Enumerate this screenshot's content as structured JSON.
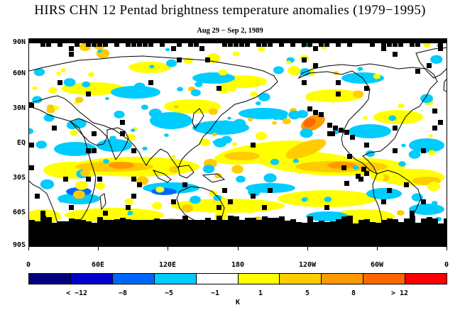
{
  "title": "HIRS CHN 12 Pentad brightness temperature anomalies (1979−1995)",
  "subtitle": "Aug 29 − Sep 2, 1989",
  "latitude_labels": [
    "90N",
    "60N",
    "30N",
    "EQ",
    "30S",
    "60S",
    "90S"
  ],
  "longitude_labels": [
    "0",
    "60E",
    "120E",
    "180",
    "120W",
    "60W",
    "0"
  ],
  "colorbar": {
    "colors": [
      "#00007f",
      "#0000cc",
      "#0066ff",
      "#00ccff",
      "#ffffff",
      "#ffff00",
      "#ffcc00",
      "#ff9900",
      "#ff6600",
      "#ff0000"
    ],
    "labels": [
      "< −12",
      "−8",
      "−5",
      "−1",
      "1",
      "5",
      "8",
      "> 12"
    ],
    "unit": "K"
  },
  "map_colors": {
    "cold_light": "#00ccff",
    "cold_mid": "#0066ff",
    "warm_light": "#ffff00",
    "warm_mid": "#ffcc00",
    "warm_strong": "#ff9900",
    "warm_peak": "#ff6600",
    "missing": "#000000"
  }
}
